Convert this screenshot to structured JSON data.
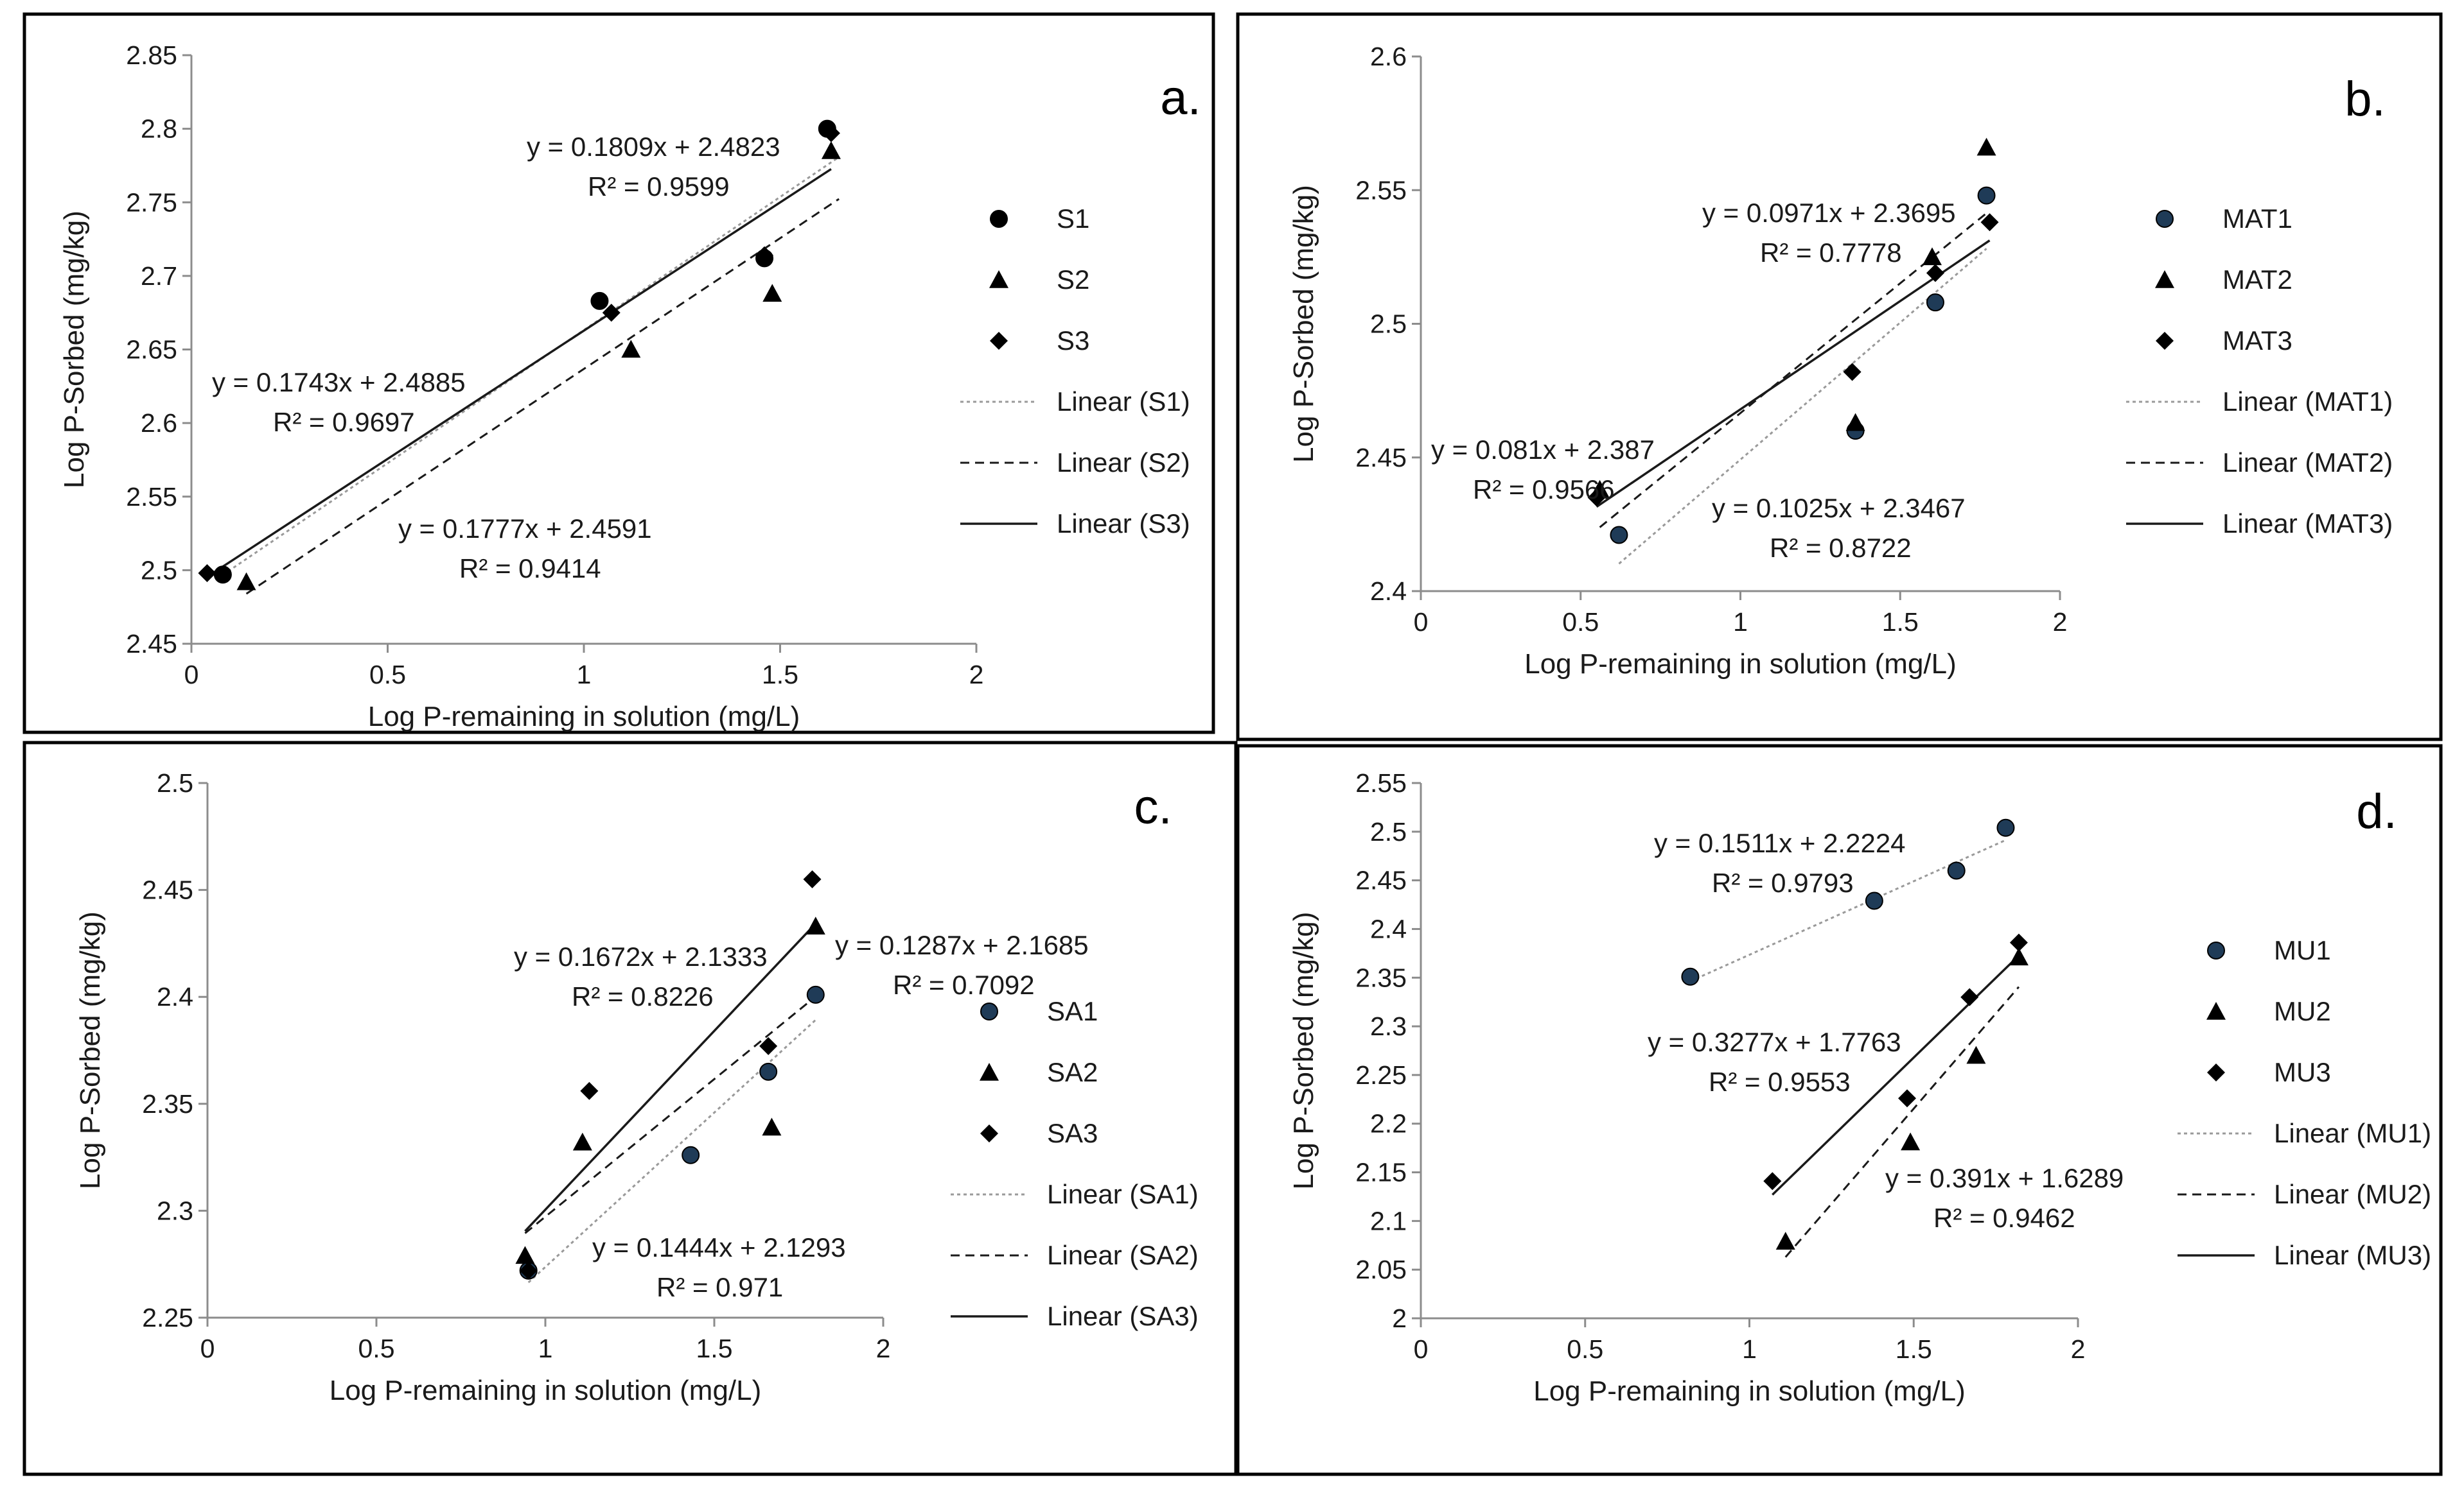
{
  "chart_data": [
    {
      "type": "scatter",
      "panel_label": "a.",
      "xlabel": "Log P-remaining in solution (mg/L)",
      "ylabel": "Log P-Sorbed (mg/kg)",
      "xlim": [
        0,
        2
      ],
      "ylim": [
        2.45,
        2.85
      ],
      "x_ticks": [
        "0",
        "0.5",
        "1",
        "1.5",
        "2"
      ],
      "y_ticks": [
        "2.45",
        "2.5",
        "2.55",
        "2.6",
        "2.65",
        "2.7",
        "2.75",
        "2.8",
        "2.85"
      ],
      "series": [
        {
          "name": "S1",
          "marker": "circle",
          "color": "#000000",
          "x": [
            0.08,
            1.04,
            1.46,
            1.62
          ],
          "y": [
            2.497,
            2.683,
            2.712,
            2.8
          ]
        },
        {
          "name": "S2",
          "marker": "triangle",
          "color": "#000000",
          "x": [
            0.14,
            1.12,
            1.48,
            1.63
          ],
          "y": [
            2.492,
            2.65,
            2.688,
            2.785
          ]
        },
        {
          "name": "S3",
          "marker": "diamond",
          "color": "#000000",
          "x": [
            0.04,
            1.07,
            1.46,
            1.63
          ],
          "y": [
            2.498,
            2.675,
            2.714,
            2.797
          ]
        }
      ],
      "trendlines": [
        {
          "name": "Linear (S1)",
          "style": "dotted",
          "slope": 0.1809,
          "intercept": 2.4823,
          "x_range": [
            0.08,
            1.65
          ]
        },
        {
          "name": "Linear (S2)",
          "style": "dashed",
          "slope": 0.1777,
          "intercept": 2.4591,
          "x_range": [
            0.14,
            1.65
          ]
        },
        {
          "name": "Linear (S3)",
          "style": "solid",
          "slope": 0.1743,
          "intercept": 2.4885,
          "x_range": [
            0.04,
            1.63
          ]
        }
      ],
      "annotations": [
        {
          "eq": "y = 0.1809x + 2.4823",
          "r2": "R² = 0.9599"
        },
        {
          "eq": "y = 0.1743x + 2.4885",
          "r2": "R² = 0.9697"
        },
        {
          "eq": "y = 0.1777x + 2.4591",
          "r2": "R² = 0.9414"
        }
      ],
      "legend": [
        "S1",
        "S2",
        "S3",
        "Linear (S1)",
        "Linear (S2)",
        "Linear (S3)"
      ]
    },
    {
      "type": "scatter",
      "panel_label": "b.",
      "xlabel": "Log P-remaining in solution (mg/L)",
      "ylabel": "Log P-Sorbed (mg/kg)",
      "xlim": [
        0,
        2
      ],
      "ylim": [
        2.4,
        2.6
      ],
      "x_ticks": [
        "0",
        "0.5",
        "1",
        "1.5",
        "2"
      ],
      "y_ticks": [
        "2.4",
        "2.45",
        "2.5",
        "2.55",
        "2.6"
      ],
      "series": [
        {
          "name": "MAT1",
          "marker": "circle",
          "color": "#1f3b57",
          "x": [
            0.62,
            1.36,
            1.61,
            1.77
          ],
          "y": [
            2.421,
            2.46,
            2.508,
            2.548
          ]
        },
        {
          "name": "MAT2",
          "marker": "triangle",
          "color": "#000000",
          "x": [
            0.56,
            1.36,
            1.6,
            1.77
          ],
          "y": [
            2.438,
            2.463,
            2.525,
            2.566
          ]
        },
        {
          "name": "MAT3",
          "marker": "diamond",
          "color": "#000000",
          "x": [
            0.55,
            1.35,
            1.61,
            1.78
          ],
          "y": [
            2.435,
            2.482,
            2.519,
            2.538
          ]
        }
      ],
      "trendlines": [
        {
          "name": "Linear (MAT1)",
          "style": "dotted",
          "slope": 0.1025,
          "intercept": 2.3467,
          "x_range": [
            0.62,
            1.77
          ]
        },
        {
          "name": "Linear (MAT2)",
          "style": "dashed",
          "slope": 0.0971,
          "intercept": 2.3695,
          "x_range": [
            0.56,
            1.77
          ]
        },
        {
          "name": "Linear (MAT3)",
          "style": "solid",
          "slope": 0.081,
          "intercept": 2.387,
          "x_range": [
            0.55,
            1.78
          ]
        }
      ],
      "annotations": [
        {
          "eq": "y = 0.0971x + 2.3695",
          "r2": "R² = 0.7778"
        },
        {
          "eq": "y = 0.081x + 2.387",
          "r2": "R² = 0.9566"
        },
        {
          "eq": "y = 0.1025x + 2.3467",
          "r2": "R² = 0.8722"
        }
      ],
      "legend": [
        "MAT1",
        "MAT2",
        "MAT3",
        "Linear (MAT1)",
        "Linear (MAT2)",
        "Linear (MAT3)"
      ]
    },
    {
      "type": "scatter",
      "panel_label": "c.",
      "xlabel": "Log P-remaining in solution (mg/L)",
      "ylabel": "Log P-Sorbed (mg/kg)",
      "xlim": [
        0,
        2
      ],
      "ylim": [
        2.25,
        2.5
      ],
      "x_ticks": [
        "0",
        "0.5",
        "1",
        "1.5",
        "2"
      ],
      "y_ticks": [
        "2.25",
        "2.3",
        "2.35",
        "2.4",
        "2.45",
        "2.5"
      ],
      "series": [
        {
          "name": "SA1",
          "marker": "circle",
          "color": "#1f3b57",
          "x": [
            0.95,
            1.43,
            1.66,
            1.8
          ],
          "y": [
            2.272,
            2.326,
            2.365,
            2.401
          ]
        },
        {
          "name": "SA2",
          "marker": "triangle",
          "color": "#000000",
          "x": [
            0.94,
            1.11,
            1.67,
            1.8
          ],
          "y": [
            2.279,
            2.332,
            2.339,
            2.433
          ]
        },
        {
          "name": "SA3",
          "marker": "diamond",
          "color": "#000000",
          "x": [
            0.95,
            1.13,
            1.66,
            1.79
          ],
          "y": [
            2.272,
            2.356,
            2.377,
            2.455
          ]
        }
      ],
      "trendlines": [
        {
          "name": "Linear (SA1)",
          "style": "dotted",
          "slope": 0.1444,
          "intercept": 2.1293,
          "x_range": [
            0.95,
            1.8
          ]
        },
        {
          "name": "Linear (SA2)",
          "style": "dashed",
          "slope": 0.1287,
          "intercept": 2.1685,
          "x_range": [
            0.94,
            1.8
          ]
        },
        {
          "name": "Linear (SA3)",
          "style": "solid",
          "slope": 0.1672,
          "intercept": 2.1333,
          "x_range": [
            0.94,
            1.79
          ]
        }
      ],
      "annotations": [
        {
          "eq": "y = 0.1672x + 2.1333",
          "r2": "R² = 0.8226"
        },
        {
          "eq": "y = 0.1287x + 2.1685",
          "r2": "R² = 0.7092"
        },
        {
          "eq": "y = 0.1444x + 2.1293",
          "r2": "R² = 0.971"
        }
      ],
      "legend": [
        "SA1",
        "SA2",
        "SA3",
        "Linear (SA1)",
        "Linear (SA2)",
        "Linear (SA3)"
      ]
    },
    {
      "type": "scatter",
      "panel_label": "d.",
      "xlabel": "Log P-remaining in solution (mg/L)",
      "ylabel": "Log P-Sorbed (mg/kg)",
      "xlim": [
        0,
        2
      ],
      "ylim": [
        2,
        2.55
      ],
      "x_ticks": [
        "0",
        "0.5",
        "1",
        "1.5",
        "2"
      ],
      "y_ticks": [
        "2",
        "2.05",
        "2.1",
        "2.15",
        "2.2",
        "2.25",
        "2.3",
        "2.35",
        "2.4",
        "2.45",
        "2.5",
        "2.55"
      ],
      "series": [
        {
          "name": "MU1",
          "marker": "circle",
          "color": "#1f3b57",
          "x": [
            0.82,
            1.38,
            1.63,
            1.78
          ],
          "y": [
            2.351,
            2.429,
            2.46,
            2.504
          ]
        },
        {
          "name": "MU2",
          "marker": "triangle",
          "color": "#000000",
          "x": [
            1.11,
            1.49,
            1.69,
            1.82
          ],
          "y": [
            2.079,
            2.181,
            2.27,
            2.371
          ]
        },
        {
          "name": "MU3",
          "marker": "diamond",
          "color": "#000000",
          "x": [
            1.07,
            1.48,
            1.67,
            1.82
          ],
          "y": [
            2.141,
            2.226,
            2.33,
            2.386
          ]
        }
      ],
      "trendlines": [
        {
          "name": "Linear (MU1)",
          "style": "dotted",
          "slope": 0.1511,
          "intercept": 2.2224,
          "x_range": [
            0.82,
            1.78
          ]
        },
        {
          "name": "Linear (MU2)",
          "style": "dashed",
          "slope": 0.391,
          "intercept": 1.6289,
          "x_range": [
            1.11,
            1.82
          ]
        },
        {
          "name": "Linear (MU3)",
          "style": "solid",
          "slope": 0.3277,
          "intercept": 1.7763,
          "x_range": [
            1.07,
            1.82
          ]
        }
      ],
      "annotations": [
        {
          "eq": "y = 0.1511x + 2.2224",
          "r2": "R² = 0.9793"
        },
        {
          "eq": "y = 0.3277x + 1.7763",
          "r2": "R² = 0.9553"
        },
        {
          "eq": "y = 0.391x + 1.6289",
          "r2": "R² = 0.9462"
        }
      ],
      "legend": [
        "MU1",
        "MU2",
        "MU3",
        "Linear (MU1)",
        "Linear (MU2)",
        "Linear (MU3)"
      ]
    }
  ]
}
